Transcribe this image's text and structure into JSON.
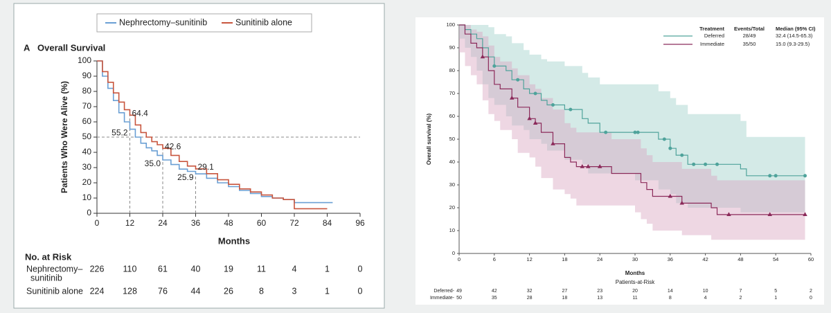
{
  "chart_data": [
    {
      "type": "line",
      "step": true,
      "panel_label": "A",
      "title": "Overall Survival",
      "ylabel": "Patients Who Were Alive (%)",
      "xlabel": "Months",
      "xlim": [
        0,
        96
      ],
      "ylim": [
        0,
        100
      ],
      "xticks": [
        0,
        12,
        24,
        36,
        48,
        60,
        72,
        84,
        96
      ],
      "yticks": [
        0,
        10,
        20,
        30,
        40,
        50,
        60,
        70,
        80,
        90,
        100
      ],
      "series": [
        {
          "name": "Nephrectomy–sunitinib",
          "color": "#6a9fd4",
          "x": [
            0,
            2,
            4,
            6,
            8,
            10,
            12,
            14,
            16,
            18,
            20,
            22,
            24,
            27,
            30,
            33,
            36,
            40,
            44,
            48,
            52,
            56,
            60,
            64,
            68,
            72,
            86
          ],
          "values": [
            100,
            90,
            82,
            74,
            66,
            60,
            55.2,
            50,
            46,
            43,
            41,
            38,
            35,
            32,
            29,
            27.5,
            25.9,
            23,
            20,
            17.5,
            15,
            13,
            11,
            10,
            9,
            7,
            7
          ]
        },
        {
          "name": "Sunitinib alone",
          "color": "#c8553d",
          "x": [
            0,
            2,
            4,
            6,
            8,
            10,
            12,
            14,
            16,
            18,
            20,
            22,
            24,
            27,
            30,
            33,
            36,
            40,
            44,
            48,
            52,
            56,
            60,
            64,
            68,
            72,
            84
          ],
          "values": [
            100,
            93,
            86,
            79,
            73,
            68,
            64.4,
            58,
            53,
            50,
            47,
            45,
            42.6,
            38,
            34,
            31,
            29.1,
            26,
            22,
            19,
            16,
            14,
            12,
            10,
            9,
            3,
            3
          ]
        }
      ],
      "hline": 50,
      "vlines": [
        12,
        24,
        36
      ],
      "annotations": [
        {
          "x": 12,
          "y": 64.4,
          "label": "64.4"
        },
        {
          "x": 12,
          "y": 55.2,
          "label": "55.2"
        },
        {
          "x": 24,
          "y": 42.6,
          "label": "42.6"
        },
        {
          "x": 24,
          "y": 35,
          "label": "35.0"
        },
        {
          "x": 36,
          "y": 29.1,
          "label": "29.1"
        },
        {
          "x": 36,
          "y": 25.9,
          "label": "25.9"
        }
      ],
      "risk_table": {
        "title": "No. at Risk",
        "rows": [
          {
            "label": [
              "Nephrectomy–",
              "sunitinib"
            ],
            "values": [
              226,
              110,
              61,
              40,
              19,
              11,
              4,
              1,
              0
            ]
          },
          {
            "label": [
              "Sunitinib alone"
            ],
            "values": [
              224,
              128,
              76,
              44,
              26,
              8,
              3,
              1,
              0
            ]
          }
        ]
      }
    },
    {
      "type": "line",
      "step": true,
      "ylabel": "Overall survival (%)",
      "xlabel": "Months",
      "xlim": [
        0,
        60
      ],
      "ylim": [
        0,
        100
      ],
      "xticks": [
        0,
        6,
        12,
        18,
        24,
        30,
        36,
        42,
        48,
        54,
        60
      ],
      "yticks": [
        0,
        10,
        20,
        30,
        40,
        50,
        60,
        70,
        80,
        90,
        100
      ],
      "legend_headers": [
        "Treatment",
        "Events/Total",
        "Median (95% CI)"
      ],
      "series": [
        {
          "name": "Deferred",
          "events_total": "28/49",
          "median": "32.4 (14.5-65.3)",
          "color": "#4fa39b",
          "band_color": "#9fd0ca",
          "x": [
            0,
            1,
            2,
            3,
            4,
            5,
            6,
            8,
            9,
            11,
            12,
            14,
            15,
            18,
            21,
            22,
            24,
            30,
            34,
            36,
            37,
            39,
            48,
            49,
            59
          ],
          "values": [
            100,
            98,
            96,
            94,
            90,
            86,
            82,
            80,
            76,
            72,
            70,
            67,
            65,
            63,
            59,
            57,
            53,
            53,
            50,
            46,
            43,
            39,
            37,
            34,
            34
          ],
          "upper": [
            100,
            100,
            100,
            100,
            100,
            99,
            96,
            95,
            92,
            89,
            87,
            85,
            84,
            82,
            79,
            77,
            74,
            74,
            71,
            68,
            65,
            61,
            58,
            51,
            51
          ],
          "lower": [
            100,
            94,
            90,
            86,
            80,
            74,
            68,
            65,
            60,
            56,
            54,
            50,
            48,
            45,
            41,
            39,
            35,
            35,
            32,
            28,
            26,
            22,
            20,
            18,
            18
          ],
          "censored": [
            6,
            10,
            13,
            16,
            19,
            25,
            30,
            30.5,
            35,
            36,
            38,
            40,
            42,
            44,
            53,
            54,
            59
          ]
        },
        {
          "name": "Immediate",
          "events_total": "35/50",
          "median": "15.0 (9.3-29.5)",
          "color": "#8b2a5a",
          "band_color": "#d9a7c2",
          "x": [
            0,
            1,
            2,
            3,
            4,
            5,
            6,
            7,
            9,
            10,
            12,
            13,
            14,
            16,
            18,
            19,
            20,
            26,
            30,
            31,
            32,
            33,
            38,
            43,
            44,
            59
          ],
          "values": [
            100,
            96,
            92,
            90,
            86,
            80,
            74,
            72,
            68,
            64,
            59,
            57,
            53,
            48,
            42,
            40,
            38,
            35,
            35,
            31,
            28,
            25,
            22,
            20,
            17,
            17
          ],
          "upper": [
            100,
            100,
            98,
            97,
            95,
            91,
            86,
            84,
            81,
            78,
            74,
            72,
            68,
            63,
            57,
            55,
            53,
            50,
            50,
            46,
            43,
            40,
            37,
            34,
            32,
            32
          ],
          "lower": [
            100,
            88,
            82,
            78,
            74,
            67,
            61,
            58,
            54,
            50,
            44,
            42,
            38,
            33,
            28,
            26,
            24,
            21,
            21,
            18,
            15,
            13,
            10,
            8,
            6,
            6
          ],
          "censored": [
            4,
            9,
            12,
            13,
            16,
            21,
            22,
            24,
            36,
            38,
            46,
            53,
            59
          ]
        }
      ],
      "risk_table": {
        "title": "Patients-at-Risk",
        "rows": [
          {
            "label": [
              "Deferred-"
            ],
            "values": [
              49,
              42,
              32,
              27,
              23,
              20,
              14,
              10,
              7,
              5,
              2
            ]
          },
          {
            "label": [
              "Immediate-"
            ],
            "values": [
              50,
              35,
              28,
              18,
              13,
              11,
              8,
              4,
              2,
              1,
              0
            ]
          }
        ]
      }
    }
  ]
}
